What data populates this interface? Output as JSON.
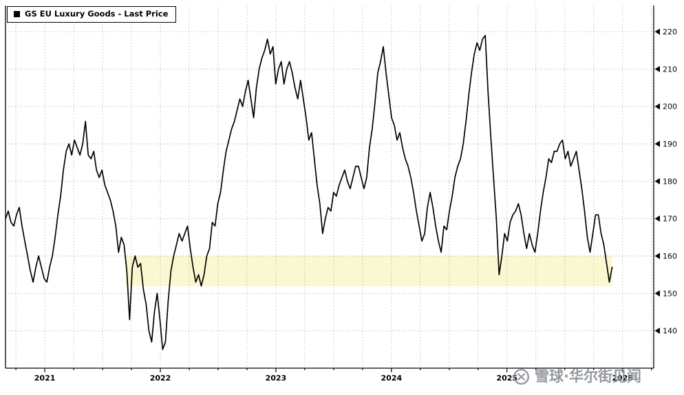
{
  "legend": {
    "label": "GS EU Luxury Goods - Last Price",
    "swatch_color": "#000000"
  },
  "watermark": {
    "text": "雪球·华尔街见闻",
    "color": "#8b9096"
  },
  "colors": {
    "line": "#000000",
    "band_fill": "#fbf7cf",
    "grid": "#b7bcc2",
    "axis": "#000000",
    "background": "#ffffff",
    "tick_label": "#000000"
  },
  "chart_data": {
    "type": "line",
    "title": "GS EU Luxury Goods - Last Price",
    "legend_position": "top-left",
    "grid": {
      "horizontal": true,
      "vertical": true,
      "style": "dotted",
      "vertical_interval_years": 0.25
    },
    "axis_x_range": [
      2020.66,
      2026.27
    ],
    "axis_y_range": [
      130,
      227
    ],
    "x_ticks": [
      2021,
      2022,
      2023,
      2024,
      2025,
      2026
    ],
    "x_tick_labels": [
      "2021",
      "2022",
      "2023",
      "2024",
      "2025",
      "2026"
    ],
    "y_ticks": [
      140,
      150,
      160,
      170,
      180,
      190,
      200,
      210,
      220
    ],
    "highlight_band": {
      "y_from": 152,
      "y_to": 160,
      "x_from": 2021.7,
      "x_to": 2025.91
    },
    "series": [
      {
        "name": "GS EU Luxury Goods - Last Price",
        "x_start": 2020.66,
        "x_end": 2025.91,
        "values": [
          170,
          172,
          169,
          168,
          171,
          173,
          168,
          164,
          160,
          156,
          153,
          157,
          160,
          157,
          154,
          153,
          157,
          160,
          165,
          171,
          176,
          183,
          188,
          190,
          187,
          191,
          189,
          187,
          190,
          196,
          187,
          186,
          188,
          183,
          181,
          183,
          179,
          177,
          175,
          172,
          168,
          161,
          165,
          163,
          156,
          143,
          157,
          160,
          157,
          158,
          151,
          147,
          140,
          137,
          145,
          150,
          143,
          135,
          137,
          148,
          156,
          160,
          163,
          166,
          164,
          166,
          168,
          162,
          157,
          153,
          155,
          152,
          155,
          160,
          162,
          169,
          168,
          174,
          177,
          183,
          188,
          191,
          194,
          196,
          199,
          202,
          200,
          204,
          207,
          202,
          197,
          205,
          210,
          213,
          215,
          218,
          214,
          216,
          206,
          210,
          212,
          206,
          210,
          212,
          209,
          205,
          202,
          207,
          202,
          197,
          191,
          193,
          186,
          179,
          174,
          166,
          170,
          173,
          172,
          177,
          176,
          179,
          181,
          183,
          180,
          178,
          181,
          184,
          184,
          181,
          178,
          181,
          189,
          194,
          201,
          209,
          212,
          216,
          209,
          203,
          197,
          195,
          191,
          193,
          189,
          186,
          184,
          181,
          177,
          172,
          168,
          164,
          166,
          173,
          177,
          173,
          168,
          164,
          161,
          168,
          167,
          172,
          176,
          181,
          184,
          186,
          190,
          196,
          203,
          209,
          214,
          217,
          215,
          218,
          219,
          204,
          192,
          181,
          170,
          155,
          160,
          166,
          164,
          169,
          171,
          172,
          174,
          171,
          166,
          162,
          166,
          163,
          161,
          166,
          172,
          177,
          181,
          186,
          185,
          188,
          188,
          190,
          191,
          186,
          188,
          184,
          186,
          188,
          183,
          178,
          172,
          165,
          161,
          166,
          171,
          171,
          166,
          163,
          158,
          153,
          157
        ]
      }
    ]
  }
}
